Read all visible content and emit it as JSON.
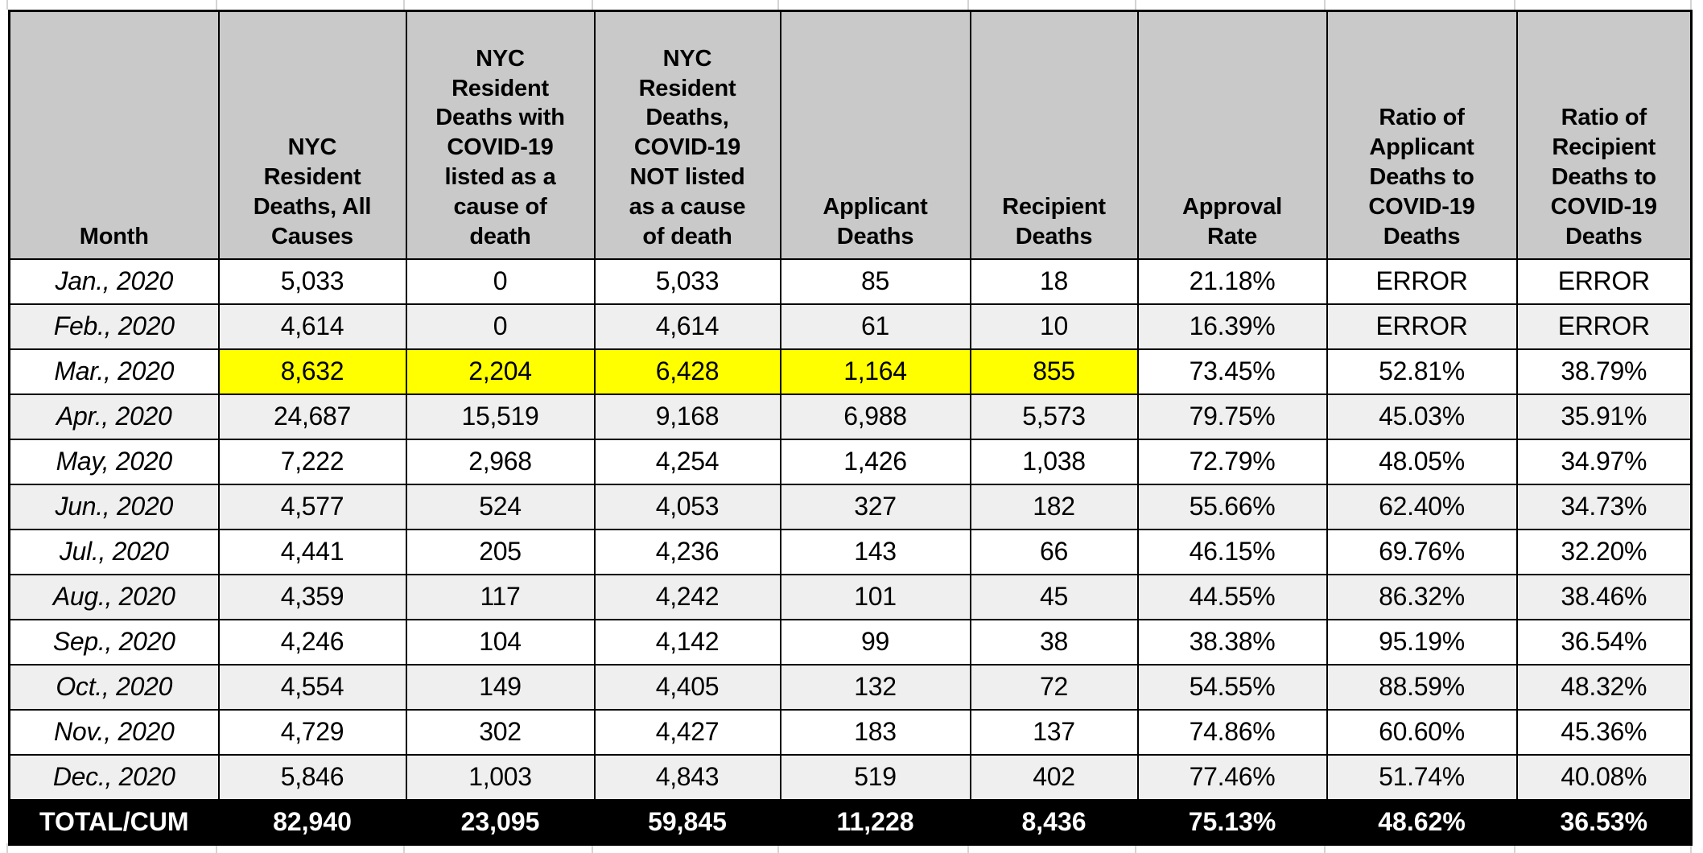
{
  "colors": {
    "header_bg": "#c9c9c9",
    "row_bg": "#ffffff",
    "row_alt_bg": "#efefef",
    "highlight_bg": "#ffff00",
    "total_bg": "#000000",
    "total_text": "#ffffff",
    "border": "#000000",
    "gridline": "#d4d4d4"
  },
  "chart_data": {
    "type": "table",
    "title": "",
    "columns": [
      "Month",
      "NYC\nResident\nDeaths, All\nCauses",
      "NYC\nResident\nDeaths with\nCOVID-19\nlisted as a\ncause of\ndeath",
      "NYC\nResident\nDeaths,\nCOVID-19\nNOT listed\nas a cause\nof death",
      "Applicant\nDeaths",
      "Recipient\nDeaths",
      "Approval\nRate",
      "Ratio of\nApplicant\nDeaths to\nCOVID-19\nDeaths",
      "Ratio of\nRecipient\nDeaths to\nCOVID-19\nDeaths"
    ],
    "rows": [
      {
        "month": "Jan., 2020",
        "shaded": false,
        "highlight": false,
        "values": [
          "5,033",
          "0",
          "5,033",
          "85",
          "18",
          "21.18%",
          "ERROR",
          "ERROR"
        ]
      },
      {
        "month": "Feb., 2020",
        "shaded": true,
        "highlight": false,
        "values": [
          "4,614",
          "0",
          "4,614",
          "61",
          "10",
          "16.39%",
          "ERROR",
          "ERROR"
        ]
      },
      {
        "month": "Mar., 2020",
        "shaded": false,
        "highlight": true,
        "values": [
          "8,632",
          "2,204",
          "6,428",
          "1,164",
          "855",
          "73.45%",
          "52.81%",
          "38.79%"
        ]
      },
      {
        "month": "Apr., 2020",
        "shaded": true,
        "highlight": true,
        "values": [
          "24,687",
          "15,519",
          "9,168",
          "6,988",
          "5,573",
          "79.75%",
          "45.03%",
          "35.91%"
        ]
      },
      {
        "month": "May, 2020",
        "shaded": false,
        "highlight": false,
        "values": [
          "7,222",
          "2,968",
          "4,254",
          "1,426",
          "1,038",
          "72.79%",
          "48.05%",
          "34.97%"
        ]
      },
      {
        "month": "Jun., 2020",
        "shaded": true,
        "highlight": false,
        "values": [
          "4,577",
          "524",
          "4,053",
          "327",
          "182",
          "55.66%",
          "62.40%",
          "34.73%"
        ]
      },
      {
        "month": "Jul., 2020",
        "shaded": false,
        "highlight": false,
        "values": [
          "4,441",
          "205",
          "4,236",
          "143",
          "66",
          "46.15%",
          "69.76%",
          "32.20%"
        ]
      },
      {
        "month": "Aug., 2020",
        "shaded": true,
        "highlight": false,
        "values": [
          "4,359",
          "117",
          "4,242",
          "101",
          "45",
          "44.55%",
          "86.32%",
          "38.46%"
        ]
      },
      {
        "month": "Sep., 2020",
        "shaded": false,
        "highlight": false,
        "values": [
          "4,246",
          "104",
          "4,142",
          "99",
          "38",
          "38.38%",
          "95.19%",
          "36.54%"
        ]
      },
      {
        "month": "Oct., 2020",
        "shaded": true,
        "highlight": false,
        "values": [
          "4,554",
          "149",
          "4,405",
          "132",
          "72",
          "54.55%",
          "88.59%",
          "48.32%"
        ]
      },
      {
        "month": "Nov., 2020",
        "shaded": false,
        "highlight": false,
        "values": [
          "4,729",
          "302",
          "4,427",
          "183",
          "137",
          "74.86%",
          "60.60%",
          "45.36%"
        ]
      },
      {
        "month": "Dec., 2020",
        "shaded": true,
        "highlight": false,
        "values": [
          "5,846",
          "1,003",
          "4,843",
          "519",
          "402",
          "77.46%",
          "51.74%",
          "40.08%"
        ]
      }
    ],
    "total": {
      "label": "TOTAL/CUM",
      "values": [
        "82,940",
        "23,095",
        "59,845",
        "11,228",
        "8,436",
        "75.13%",
        "48.62%",
        "36.53%"
      ]
    },
    "highlight_columns_note": "yellow highlight applies to the first five value columns of highlighted rows"
  }
}
